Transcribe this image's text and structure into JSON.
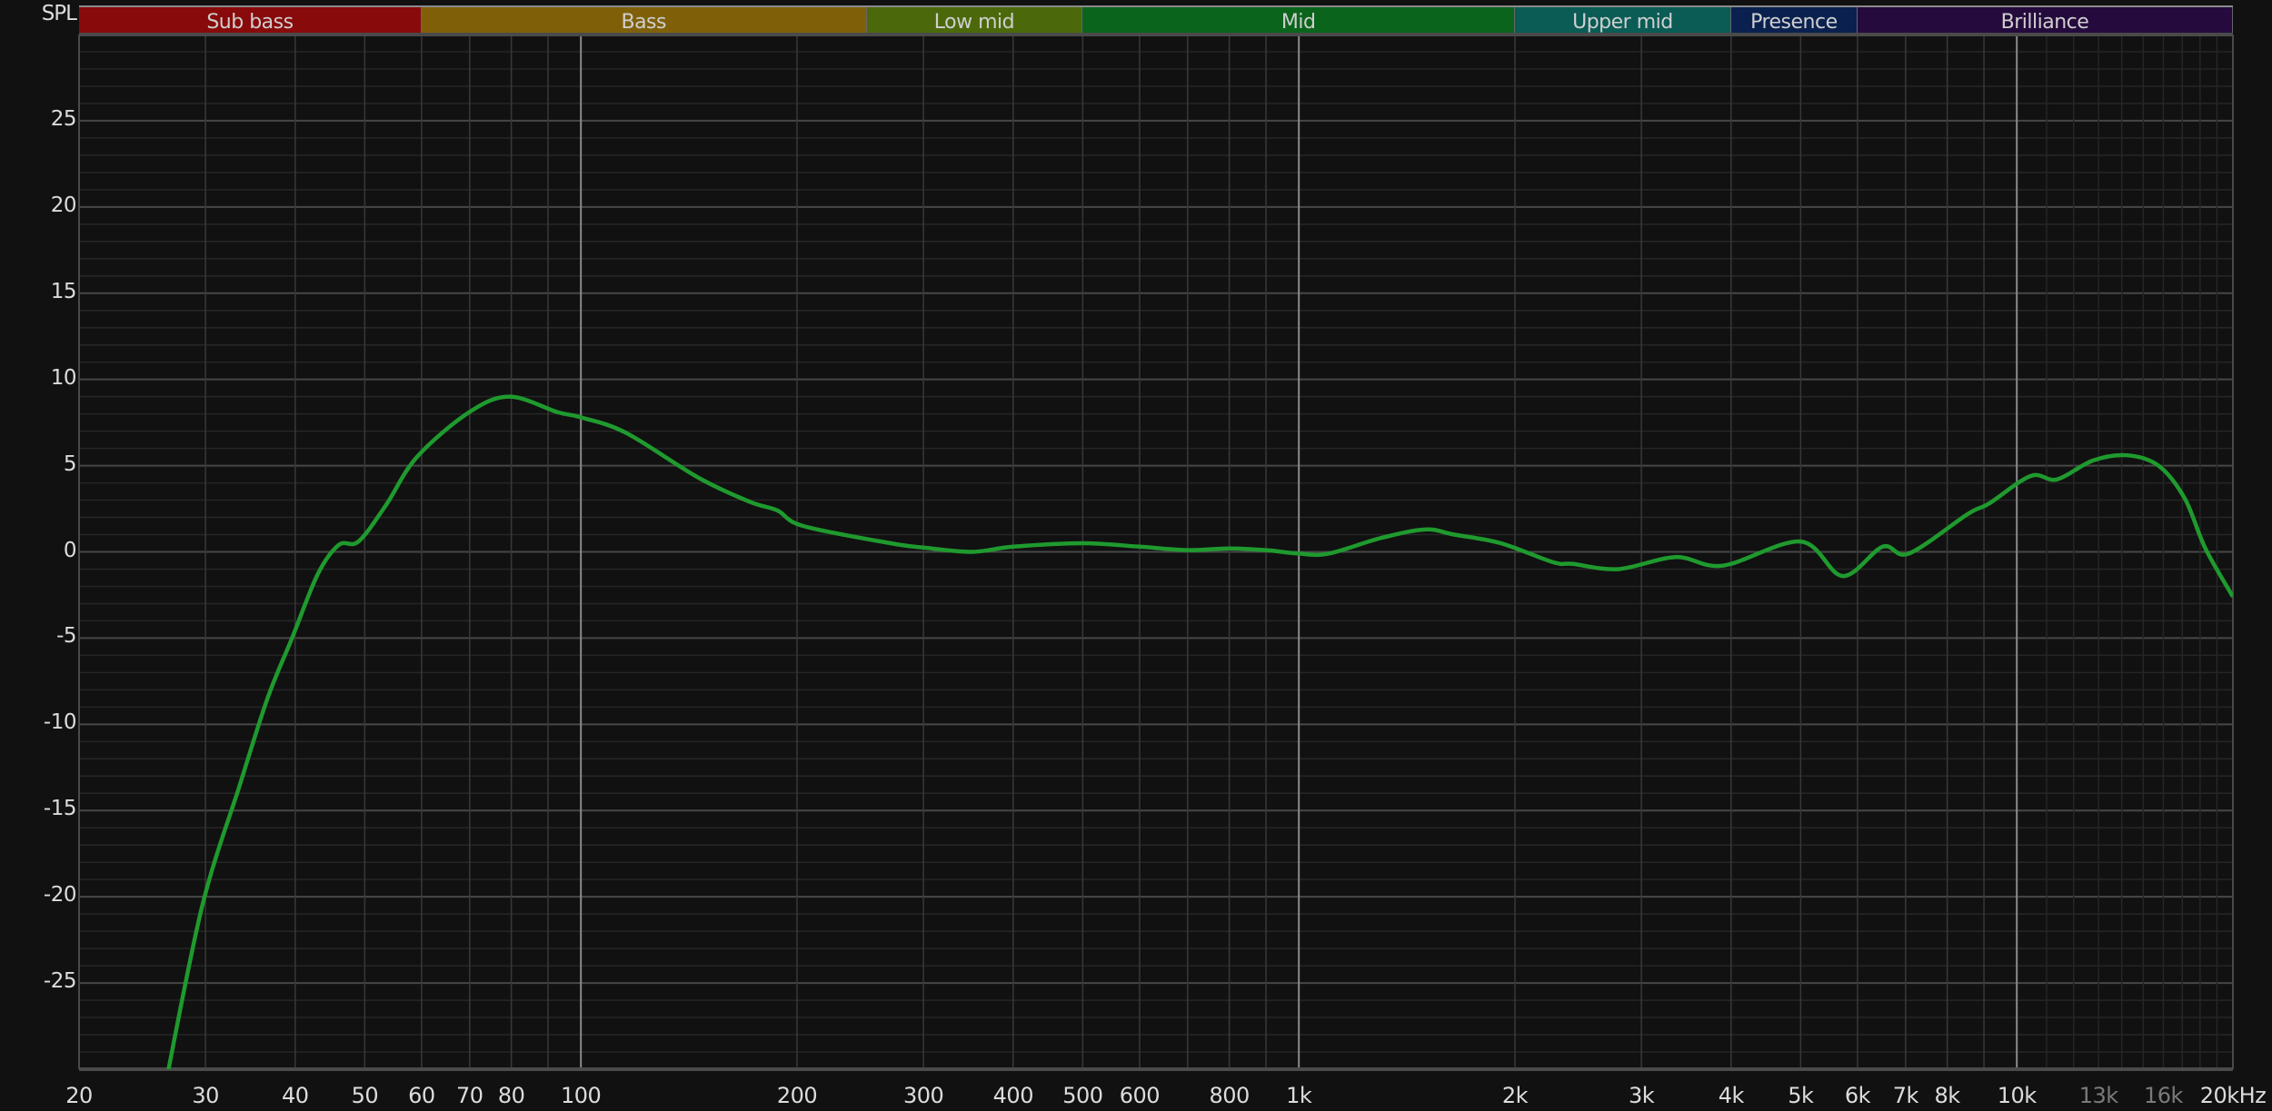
{
  "chart_data": {
    "type": "line",
    "ylabel": "SPL",
    "x_scale": "log",
    "xlim": [
      20,
      20000
    ],
    "ylim": [
      -30,
      30
    ],
    "grid": true,
    "y_ticks": [
      25,
      20,
      15,
      10,
      5,
      0,
      -5,
      -10,
      -15,
      -20,
      -25
    ],
    "x_ticks": [
      {
        "value": 20,
        "label": "20",
        "dim": false
      },
      {
        "value": 30,
        "label": "30",
        "dim": false
      },
      {
        "value": 40,
        "label": "40",
        "dim": false
      },
      {
        "value": 50,
        "label": "50",
        "dim": false
      },
      {
        "value": 60,
        "label": "60",
        "dim": false
      },
      {
        "value": 70,
        "label": "70",
        "dim": false
      },
      {
        "value": 80,
        "label": "80",
        "dim": false
      },
      {
        "value": 100,
        "label": "100",
        "dim": false
      },
      {
        "value": 200,
        "label": "200",
        "dim": false
      },
      {
        "value": 300,
        "label": "300",
        "dim": false
      },
      {
        "value": 400,
        "label": "400",
        "dim": false
      },
      {
        "value": 500,
        "label": "500",
        "dim": false
      },
      {
        "value": 600,
        "label": "600",
        "dim": false
      },
      {
        "value": 800,
        "label": "800",
        "dim": false
      },
      {
        "value": 1000,
        "label": "1k",
        "dim": false
      },
      {
        "value": 2000,
        "label": "2k",
        "dim": false
      },
      {
        "value": 3000,
        "label": "3k",
        "dim": false
      },
      {
        "value": 4000,
        "label": "4k",
        "dim": false
      },
      {
        "value": 5000,
        "label": "5k",
        "dim": false
      },
      {
        "value": 6000,
        "label": "6k",
        "dim": false
      },
      {
        "value": 7000,
        "label": "7k",
        "dim": false
      },
      {
        "value": 8000,
        "label": "8k",
        "dim": false
      },
      {
        "value": 10000,
        "label": "10k",
        "dim": false
      },
      {
        "value": 13000,
        "label": "13k",
        "dim": true
      },
      {
        "value": 16000,
        "label": "16k",
        "dim": true
      },
      {
        "value": 20000,
        "label": "20kHz",
        "dim": false
      }
    ],
    "bands": [
      {
        "label": "Sub bass",
        "from": 20,
        "to": 60,
        "color": "#890a0a"
      },
      {
        "label": "Bass",
        "from": 60,
        "to": 250,
        "color": "#7f6009"
      },
      {
        "label": "Low mid",
        "from": 250,
        "to": 500,
        "color": "#4b690b"
      },
      {
        "label": "Mid",
        "from": 500,
        "to": 2000,
        "color": "#0a641b"
      },
      {
        "label": "Upper mid",
        "from": 2000,
        "to": 4000,
        "color": "#0a5c55"
      },
      {
        "label": "Presence",
        "from": 4000,
        "to": 6000,
        "color": "#0a2150"
      },
      {
        "label": "Brilliance",
        "from": 6000,
        "to": 20000,
        "color": "#250a3d"
      }
    ],
    "series": [
      {
        "color": "#1f9a2e",
        "points": [
          [
            26.5,
            -30.5
          ],
          [
            29.7,
            -20.5
          ],
          [
            33.5,
            -13.5
          ],
          [
            36.6,
            -8.5
          ],
          [
            39.6,
            -5.0
          ],
          [
            43.0,
            -1.3
          ],
          [
            46.0,
            0.4
          ],
          [
            49.0,
            0.6
          ],
          [
            53.5,
            2.7
          ],
          [
            59.1,
            5.5
          ],
          [
            69.9,
            8.1
          ],
          [
            79.6,
            9.0
          ],
          [
            92.8,
            8.1
          ],
          [
            100,
            7.8
          ],
          [
            115.6,
            6.9
          ],
          [
            145.8,
            4.3
          ],
          [
            172,
            2.9
          ],
          [
            187.8,
            2.4
          ],
          [
            204,
            1.5
          ],
          [
            270,
            0.5
          ],
          [
            300,
            0.25
          ],
          [
            350,
            0.0
          ],
          [
            400,
            0.3
          ],
          [
            500,
            0.5
          ],
          [
            600,
            0.3
          ],
          [
            700,
            0.1
          ],
          [
            800,
            0.2
          ],
          [
            900,
            0.1
          ],
          [
            1000,
            -0.1
          ],
          [
            1100,
            -0.1
          ],
          [
            1300,
            0.8
          ],
          [
            1500,
            1.3
          ],
          [
            1646,
            1.0
          ],
          [
            1912,
            0.5
          ],
          [
            2260,
            -0.6
          ],
          [
            2410,
            -0.7
          ],
          [
            2786,
            -1.0
          ],
          [
            3350,
            -0.3
          ],
          [
            3894,
            -0.8
          ],
          [
            5000,
            0.6
          ],
          [
            5720,
            -1.4
          ],
          [
            6506,
            0.3
          ],
          [
            7074,
            -0.1
          ],
          [
            8550,
            2.2
          ],
          [
            9146,
            2.8
          ],
          [
            10454,
            4.4
          ],
          [
            11370,
            4.2
          ],
          [
            12770,
            5.3
          ],
          [
            14250,
            5.6
          ],
          [
            15750,
            5.0
          ],
          [
            17135,
            3.1
          ],
          [
            18310,
            0.2
          ],
          [
            20000,
            -2.6
          ]
        ]
      }
    ]
  }
}
